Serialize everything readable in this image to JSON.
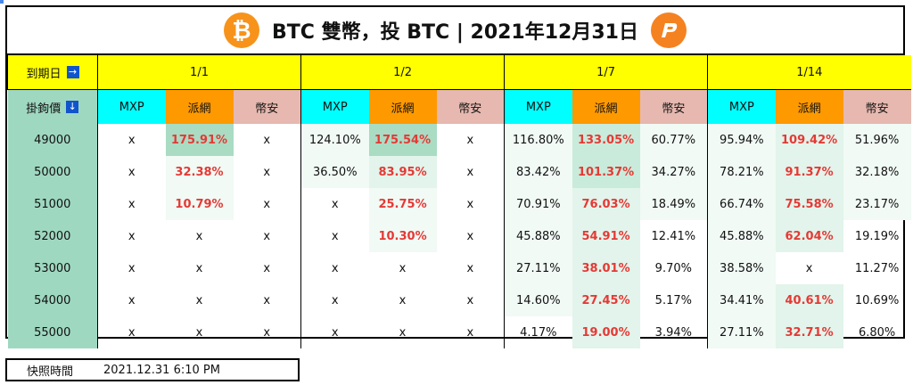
{
  "header": {
    "title": "BTC 雙幣，投 BTC | 2021年12月31日",
    "btc_icon": "bitcoin-icon",
    "brand_icon": "pionex-logo-icon"
  },
  "table": {
    "expiry_label": "到期日",
    "expiry_arrow": "→",
    "strike_label": "掛鉤價",
    "strike_arrow": "↓",
    "dates": [
      "1/1",
      "1/2",
      "1/7",
      "1/14"
    ],
    "exchanges": [
      "MXP",
      "派網",
      "幣安"
    ],
    "rows": [
      {
        "strike": "49000",
        "cells": [
          "x",
          "175.91%",
          "x",
          "124.10%",
          "175.54%",
          "x",
          "116.80%",
          "133.05%",
          "60.77%",
          "95.94%",
          "109.42%",
          "51.96%"
        ]
      },
      {
        "strike": "50000",
        "cells": [
          "x",
          "32.38%",
          "x",
          "36.50%",
          "83.95%",
          "x",
          "83.42%",
          "101.37%",
          "34.27%",
          "78.21%",
          "91.37%",
          "32.18%"
        ]
      },
      {
        "strike": "51000",
        "cells": [
          "x",
          "10.79%",
          "x",
          "x",
          "25.75%",
          "x",
          "70.91%",
          "76.03%",
          "18.49%",
          "66.74%",
          "75.58%",
          "23.17%"
        ]
      },
      {
        "strike": "52000",
        "cells": [
          "x",
          "x",
          "x",
          "x",
          "10.30%",
          "x",
          "45.88%",
          "54.91%",
          "12.41%",
          "45.88%",
          "62.04%",
          "19.19%"
        ]
      },
      {
        "strike": "53000",
        "cells": [
          "x",
          "x",
          "x",
          "x",
          "x",
          "x",
          "27.11%",
          "38.01%",
          "9.70%",
          "38.58%",
          "x",
          "11.27%"
        ]
      },
      {
        "strike": "54000",
        "cells": [
          "x",
          "x",
          "x",
          "x",
          "x",
          "x",
          "14.60%",
          "27.45%",
          "5.17%",
          "34.41%",
          "40.61%",
          "10.69%"
        ]
      },
      {
        "strike": "55000",
        "cells": [
          "x",
          "x",
          "x",
          "x",
          "x",
          "x",
          "4.17%",
          "19.00%",
          "3.94%",
          "27.11%",
          "32.71%",
          "6.80%"
        ]
      }
    ]
  },
  "footer": {
    "label": "快照時間",
    "value": "2021.12.31 6:10 PM"
  },
  "colors": {
    "date_bg": "#ffff00",
    "mxp_bg": "#00ffff",
    "pionex_bg": "#ff9900",
    "binance_bg": "#e6b8af",
    "strike_bg": "#9fd8c1",
    "highlight_text": "#e53935"
  }
}
